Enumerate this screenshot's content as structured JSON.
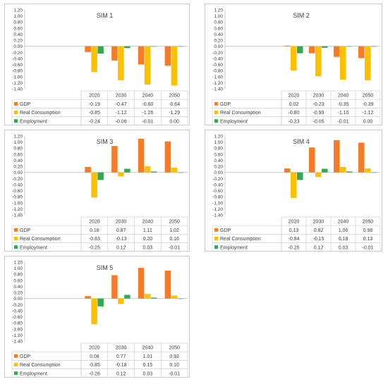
{
  "legend_colors": {
    "GDP": "#f57c24",
    "Real Consumption": "#ffc000",
    "Employment": "#34a853"
  },
  "chart_data": [
    {
      "type": "bar",
      "title": "SIM 1",
      "categories": [
        "2020",
        "2030",
        "2040",
        "2050"
      ],
      "ylim": [
        -1.4,
        1.2
      ],
      "yticks": [
        "1.20",
        "1.00",
        "0.80",
        "0.60",
        "0.40",
        "0.20",
        "0.00",
        "-0.20",
        "-0.40",
        "-0.60",
        "-0.80",
        "-1.00",
        "-1.20",
        "-1.40"
      ],
      "series": [
        {
          "name": "GDP",
          "values": [
            -0.19,
            -0.47,
            -0.6,
            -0.64
          ],
          "labels": [
            "-0.19",
            "-0.47",
            "-0.60",
            "-0.64"
          ]
        },
        {
          "name": "Real Consumption",
          "values": [
            -0.85,
            -1.12,
            -1.26,
            -1.29
          ],
          "labels": [
            "-0.85",
            "-1.12",
            "-1.26",
            "-1.29"
          ]
        },
        {
          "name": "Employment",
          "values": [
            -0.24,
            -0.06,
            -0.01,
            0.0
          ],
          "labels": [
            "-0.24",
            "-0.06",
            "-0.01",
            "0.00"
          ]
        }
      ]
    },
    {
      "type": "bar",
      "title": "SIM 2",
      "categories": [
        "2020",
        "2030",
        "2040",
        "2050"
      ],
      "ylim": [
        -1.4,
        1.2
      ],
      "yticks": [
        "1.20",
        "1.00",
        "0.80",
        "0.60",
        "0.40",
        "0.20",
        "0.00",
        "-0.20",
        "-0.40",
        "-0.60",
        "-0.80",
        "-1.00",
        "-1.20",
        "-1.40"
      ],
      "series": [
        {
          "name": "GDP",
          "values": [
            0.02,
            -0.23,
            -0.35,
            -0.39
          ],
          "labels": [
            "0.02",
            "-0.23",
            "-0.35",
            "-0.39"
          ]
        },
        {
          "name": "Real Consumption",
          "values": [
            -0.8,
            -0.99,
            -1.1,
            -1.12
          ],
          "labels": [
            "-0.80",
            "-0.99",
            "-1.10",
            "-1.12"
          ]
        },
        {
          "name": "Employment",
          "values": [
            -0.23,
            -0.05,
            -0.01,
            0.0
          ],
          "labels": [
            "-0.23",
            "-0.05",
            "-0.01",
            "0.00"
          ]
        }
      ]
    },
    {
      "type": "bar",
      "title": "SIM 3",
      "categories": [
        "2020",
        "2030",
        "2040",
        "2050"
      ],
      "ylim": [
        -1.4,
        1.2
      ],
      "yticks": [
        "1.20",
        "1.00",
        "0.80",
        "0.60",
        "0.40",
        "0.20",
        "0.00",
        "-0.20",
        "-0.40",
        "-0.60",
        "-0.80",
        "-1.00",
        "-1.20",
        "-1.40"
      ],
      "series": [
        {
          "name": "GDP",
          "values": [
            0.18,
            0.87,
            1.11,
            1.02
          ],
          "labels": [
            "0.18",
            "0.87",
            "1.11",
            "1.02"
          ]
        },
        {
          "name": "Real Consumption",
          "values": [
            -0.83,
            -0.13,
            0.2,
            0.16
          ],
          "labels": [
            "-0.83",
            "-0.13",
            "0.20",
            "0.16"
          ]
        },
        {
          "name": "Employment",
          "values": [
            -0.25,
            0.12,
            0.03,
            -0.01
          ],
          "labels": [
            "-0.25",
            "0.12",
            "0.03",
            "-0.01"
          ]
        }
      ]
    },
    {
      "type": "bar",
      "title": "SIM 4",
      "categories": [
        "2020",
        "2030",
        "2040",
        "2050"
      ],
      "ylim": [
        -1.4,
        1.2
      ],
      "yticks": [
        "1.20",
        "1.00",
        "0.80",
        "0.60",
        "0.40",
        "0.20",
        "0.00",
        "-0.20",
        "-0.40",
        "-0.60",
        "-0.80",
        "-1.00",
        "-1.20",
        "-1.40"
      ],
      "series": [
        {
          "name": "GDP",
          "values": [
            0.13,
            0.82,
            1.06,
            0.98
          ],
          "labels": [
            "0.13",
            "0.82",
            "1.06",
            "0.98"
          ]
        },
        {
          "name": "Real Consumption",
          "values": [
            -0.84,
            -0.15,
            0.18,
            0.13
          ],
          "labels": [
            "-0.84",
            "-0.15",
            "0.18",
            "0.13"
          ]
        },
        {
          "name": "Employment",
          "values": [
            -0.25,
            0.12,
            0.03,
            -0.01
          ],
          "labels": [
            "-0.25",
            "0.12",
            "0.03",
            "-0.01"
          ]
        }
      ]
    },
    {
      "type": "bar",
      "title": "SIM 5",
      "categories": [
        "2020",
        "2030",
        "2040",
        "2050"
      ],
      "ylim": [
        -1.4,
        1.2
      ],
      "yticks": [
        "1.20",
        "1.00",
        "0.80",
        "0.60",
        "0.40",
        "0.20",
        "0.00",
        "-0.20",
        "-0.40",
        "-0.60",
        "-0.80",
        "-1.00",
        "-1.20",
        "-1.40"
      ],
      "series": [
        {
          "name": "GDP",
          "values": [
            0.08,
            0.77,
            1.01,
            0.92
          ],
          "labels": [
            "0.08",
            "0.77",
            "1.01",
            "0.92"
          ]
        },
        {
          "name": "Real Consumption",
          "values": [
            -0.85,
            -0.18,
            0.15,
            0.1
          ],
          "labels": [
            "-0.85",
            "-0.18",
            "0.15",
            "0.10"
          ]
        },
        {
          "name": "Employment",
          "values": [
            -0.26,
            0.12,
            0.03,
            -0.01
          ],
          "labels": [
            "-0.26",
            "0.12",
            "0.03",
            "-0.01"
          ]
        }
      ]
    }
  ]
}
